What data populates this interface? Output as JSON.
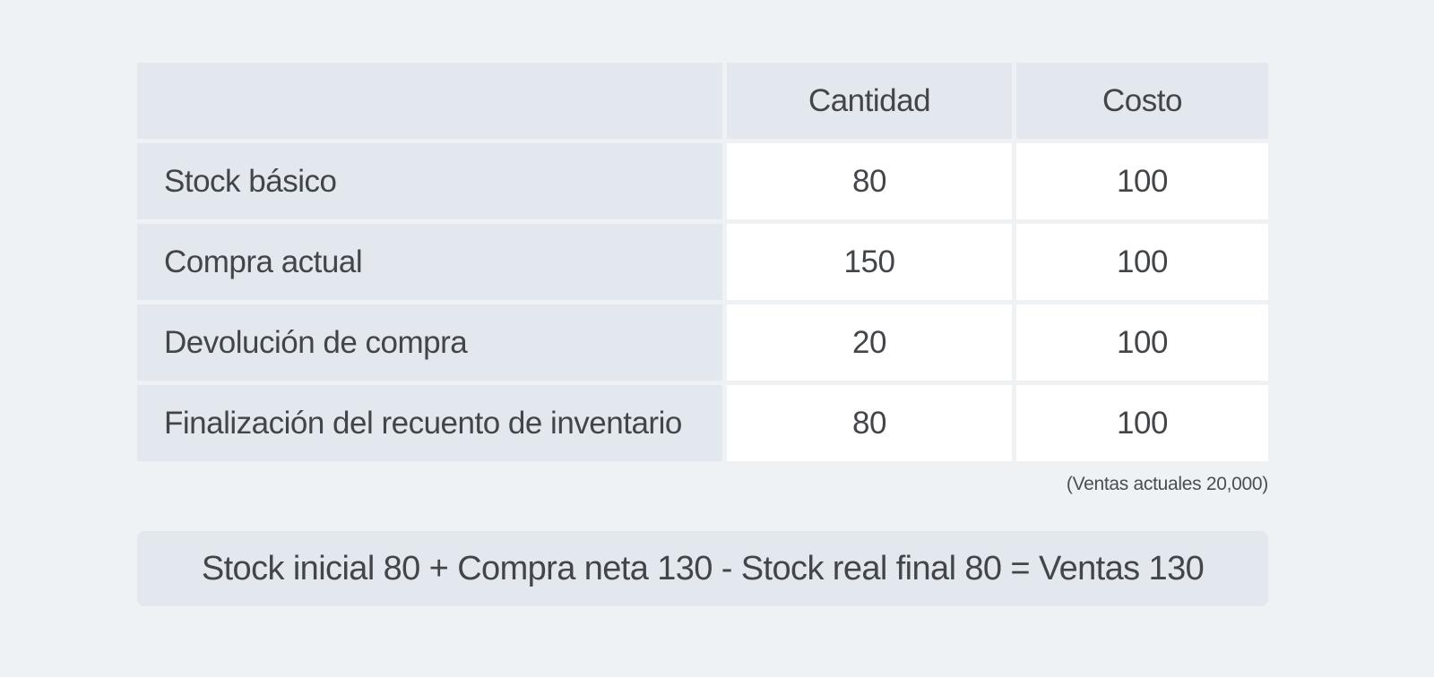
{
  "table": {
    "headers": [
      "",
      "Cantidad",
      "Costo"
    ],
    "rows": [
      {
        "label": "Stock básico",
        "cantidad": "80",
        "costo": "100"
      },
      {
        "label": "Compra actual",
        "cantidad": "150",
        "costo": "100"
      },
      {
        "label": "Devolución de compra",
        "cantidad": "20",
        "costo": "100"
      },
      {
        "label": "Finalización del recuento de inventario",
        "cantidad": "80",
        "costo": "100"
      }
    ]
  },
  "note": "(Ventas actuales 20,000)",
  "formula": "Stock inicial 80 + Compra neta 130 - Stock real final 80 = Ventas 130",
  "colors": {
    "background": "#eef2f5",
    "header_cell": "#e3e8ee",
    "value_cell": "#ffffff",
    "text": "#42464b"
  }
}
